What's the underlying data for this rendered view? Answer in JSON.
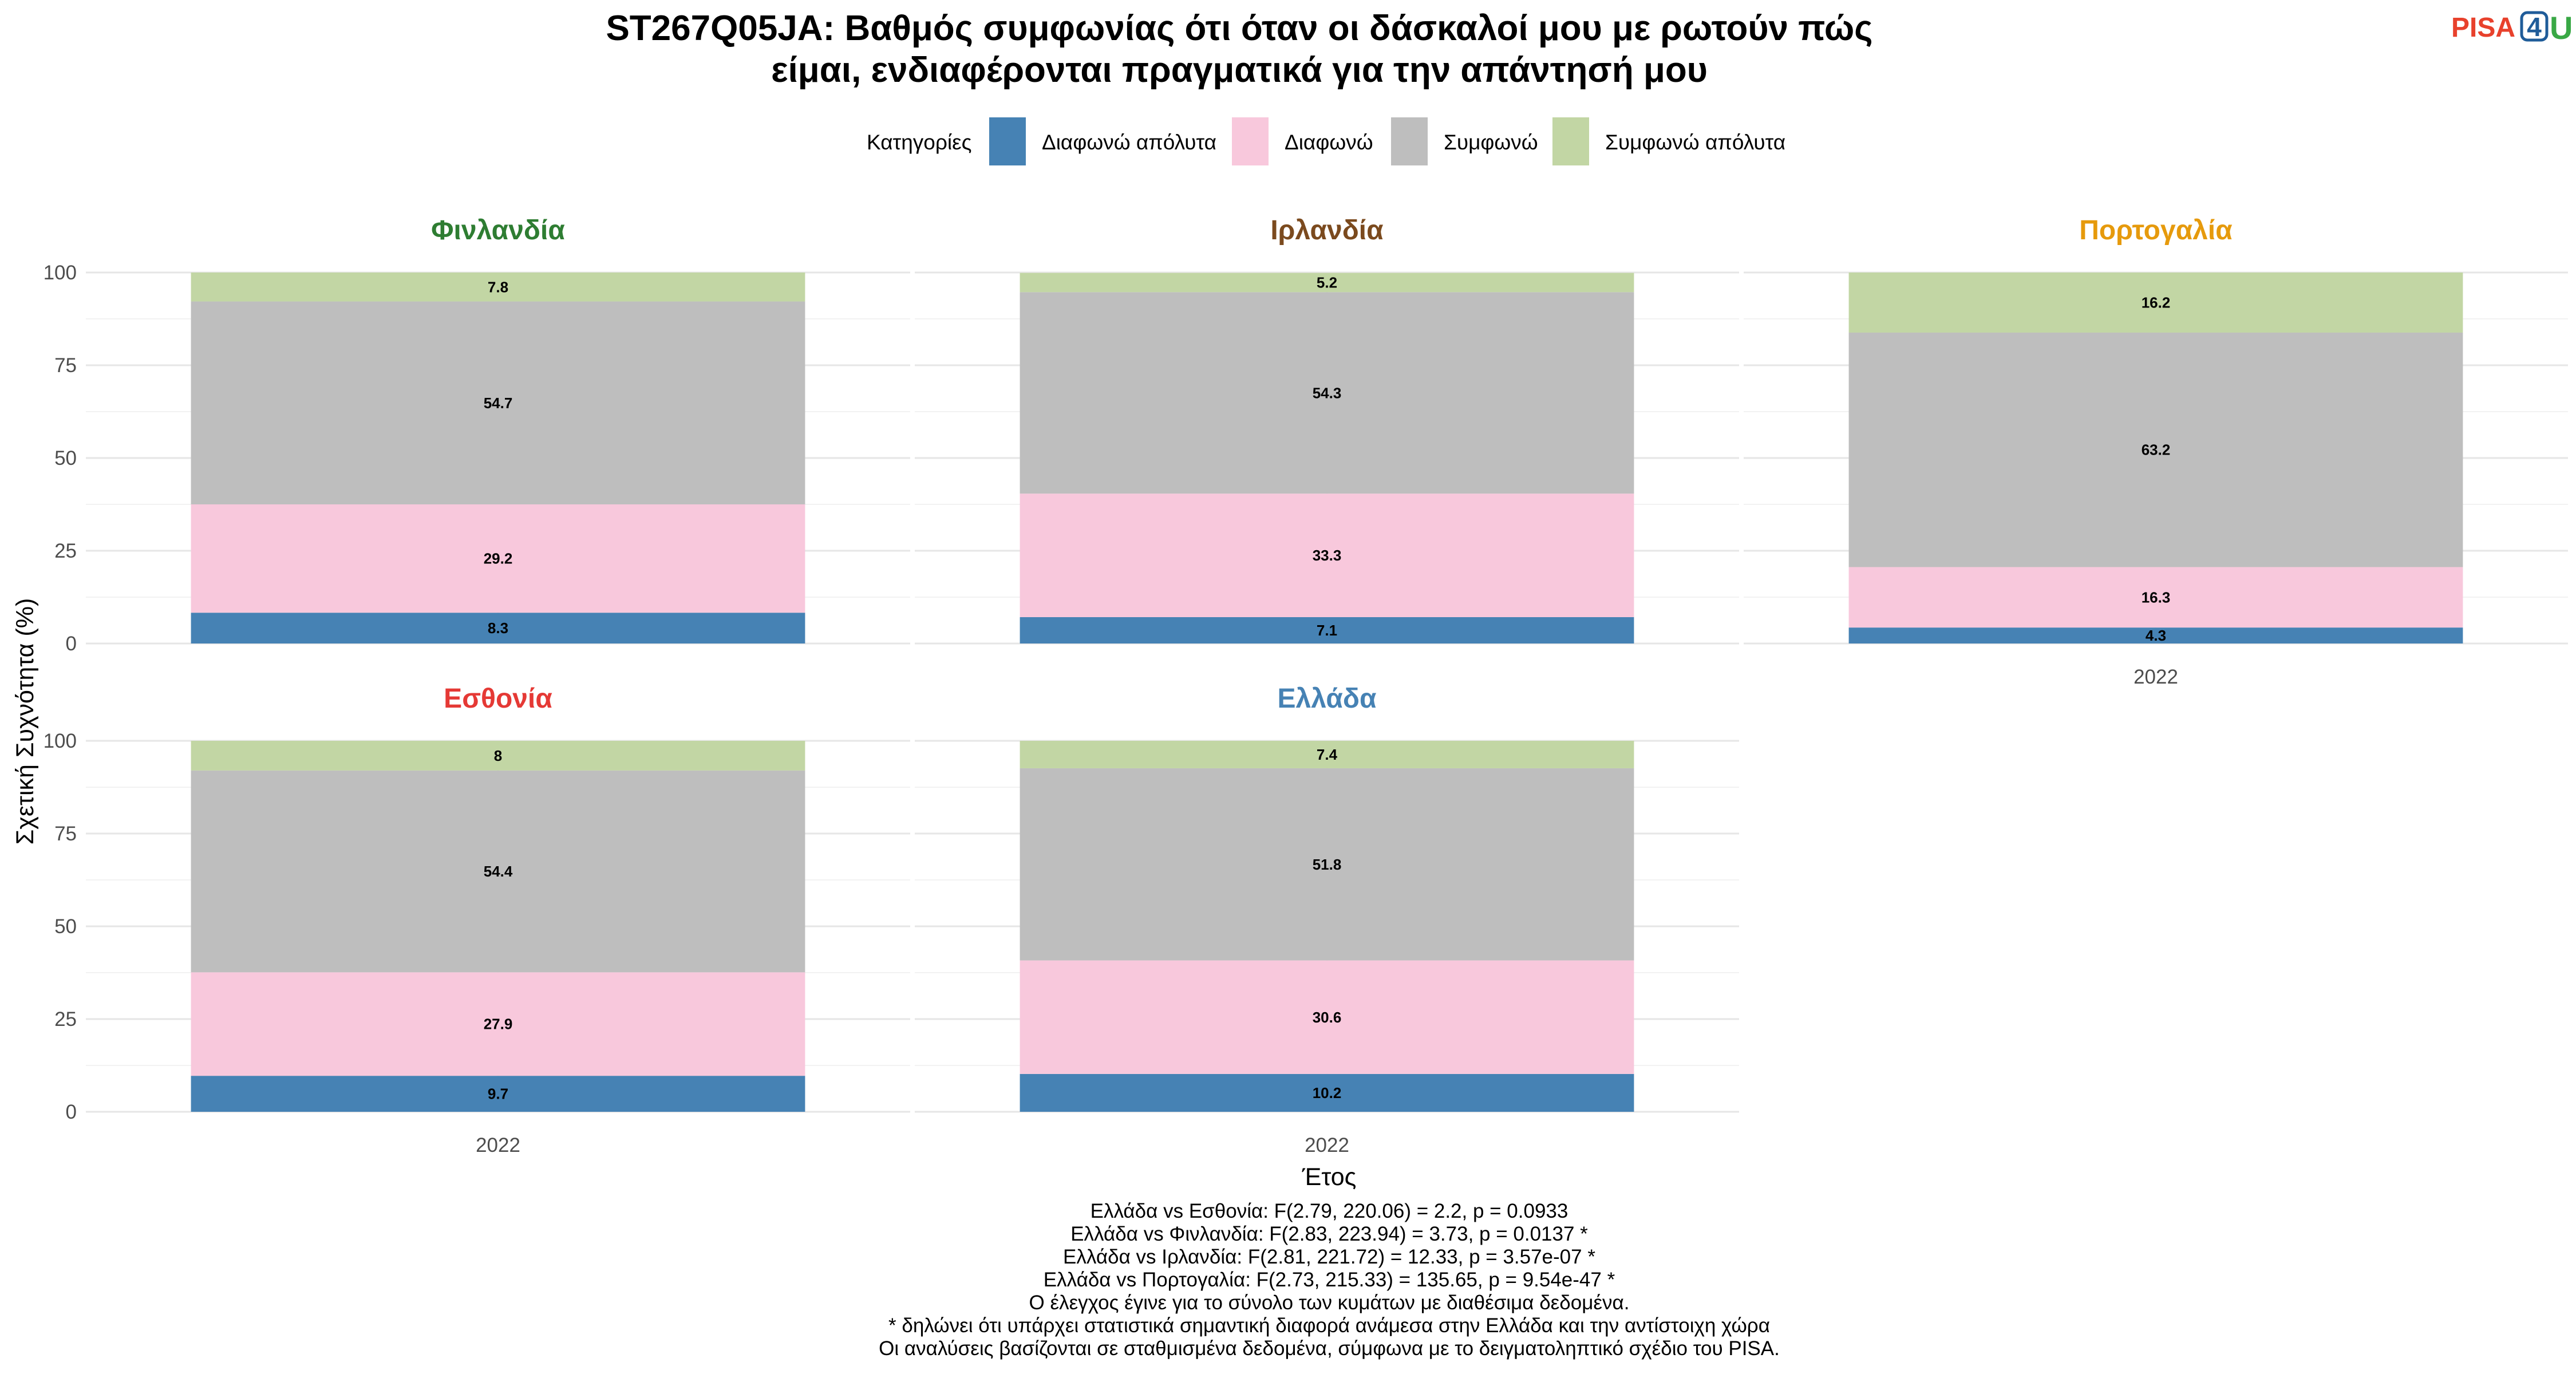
{
  "title_lines": [
    "ST267Q05JA: Βαθμός συμφωνίας ότι όταν οι δάσκαλοί μου με ρωτούν πώς",
    "είμαι, ενδιαφέρονται πραγματικά για την απάντησή μου"
  ],
  "logo": {
    "part1": "PISA",
    "part2": "4",
    "part3": "U"
  },
  "legend": {
    "title": "Κατηγορίες",
    "position": "top",
    "items": [
      {
        "label": "Διαφωνώ απόλυτα",
        "color": "#4682b4"
      },
      {
        "label": "Διαφωνώ",
        "color": "#f8c8dc"
      },
      {
        "label": "Συμφωνώ",
        "color": "#bebebe"
      },
      {
        "label": "Συμφωνώ απόλυτα",
        "color": "#c2d6a4"
      }
    ]
  },
  "chart_data": {
    "type": "bar",
    "stacked": true,
    "xlabel": "Έτος",
    "ylabel": "Σχετική Συχνότητα (%)",
    "ylim": [
      0,
      100
    ],
    "yticks": [
      0,
      25,
      50,
      75,
      100
    ],
    "grid": true,
    "categories_order": [
      "Διαφωνώ απόλυτα",
      "Διαφωνώ",
      "Συμφωνώ",
      "Συμφωνώ απόλυτα"
    ],
    "facets": [
      {
        "name": "Φινλανδία",
        "color": "#2e7d32",
        "year": "2022",
        "values": [
          8.3,
          29.2,
          54.7,
          7.8
        ]
      },
      {
        "name": "Ιρλανδία",
        "color": "#7b4a1e",
        "year": "2022",
        "values": [
          7.1,
          33.3,
          54.3,
          5.2
        ]
      },
      {
        "name": "Πορτογαλία",
        "color": "#e69a0c",
        "year": "2022",
        "values": [
          4.3,
          16.3,
          63.2,
          16.2
        ]
      },
      {
        "name": "Εσθονία",
        "color": "#e53935",
        "year": "2022",
        "values": [
          9.7,
          27.9,
          54.4,
          8
        ]
      },
      {
        "name": "Ελλάδα",
        "color": "#4682b4",
        "year": "2022",
        "values": [
          10.2,
          30.6,
          51.8,
          7.4
        ]
      }
    ]
  },
  "notes": [
    "Ελλάδα vs Εσθονία: F(2.79, 220.06) = 2.2, p = 0.0933",
    "Ελλάδα vs Φινλανδία: F(2.83, 223.94) = 3.73, p = 0.0137 *",
    "Ελλάδα vs Ιρλανδία: F(2.81, 221.72) = 12.33, p = 3.57e-07 *",
    "Ελλάδα vs Πορτογαλία: F(2.73, 215.33) = 135.65, p = 9.54e-47 *",
    "Ο έλεγχος έγινε για το σύνολο των κυμάτων με διαθέσιμα δεδομένα.",
    "* δηλώνει ότι υπάρχει στατιστικά σημαντική διαφορά ανάμεσα στην Ελλάδα και την αντίστοιχη χώρα",
    "Οι αναλύσεις βασίζονται σε σταθμισμένα δεδομένα, σύμφωνα με το δειγματοληπτικό σχέδιο του PISA."
  ]
}
